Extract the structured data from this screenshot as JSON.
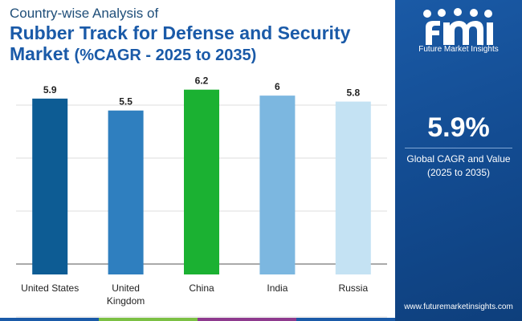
{
  "header": {
    "subtitle": "Country-wise Analysis of",
    "title_line1": "Rubber Track for Defense and Security",
    "title_line2_main": "Market",
    "title_line2_paren": "(%CAGR - 2025 to 2035)"
  },
  "chart_data": {
    "type": "bar",
    "title": "Rubber Track for Defense and Security Market (%CAGR - 2025 to 2035)",
    "categories": [
      "United States",
      "United Kingdom",
      "China",
      "India",
      "Russia"
    ],
    "category_lines": [
      [
        "United States"
      ],
      [
        "United",
        "Kingdom"
      ],
      [
        "China"
      ],
      [
        "India"
      ],
      [
        "Russia"
      ]
    ],
    "values": [
      5.9,
      5.5,
      6.2,
      6,
      5.8
    ],
    "value_labels": [
      "5.9",
      "5.5",
      "6.2",
      "6",
      "5.8"
    ],
    "bar_colors": [
      "#0d5c94",
      "#2f7fbf",
      "#1bb132",
      "#7cb7e0",
      "#c4e2f3"
    ],
    "xlabel": "",
    "ylabel": "",
    "ylim": [
      0,
      7
    ],
    "grid": true
  },
  "panel": {
    "brand": "Future Market Insights",
    "kpi_value": "5.9%",
    "kpi_label_line1": "Global CAGR and Value",
    "kpi_label_line2": "(2025 to 2035)",
    "website": "www.futuremarketinsights.com"
  },
  "colors": {
    "title": "#1a5aa8",
    "panel": "#124a8f",
    "bottom_bar": [
      "#1a5aa8",
      "#7bc043",
      "#8e3a8e",
      "#1a5aa8"
    ]
  }
}
